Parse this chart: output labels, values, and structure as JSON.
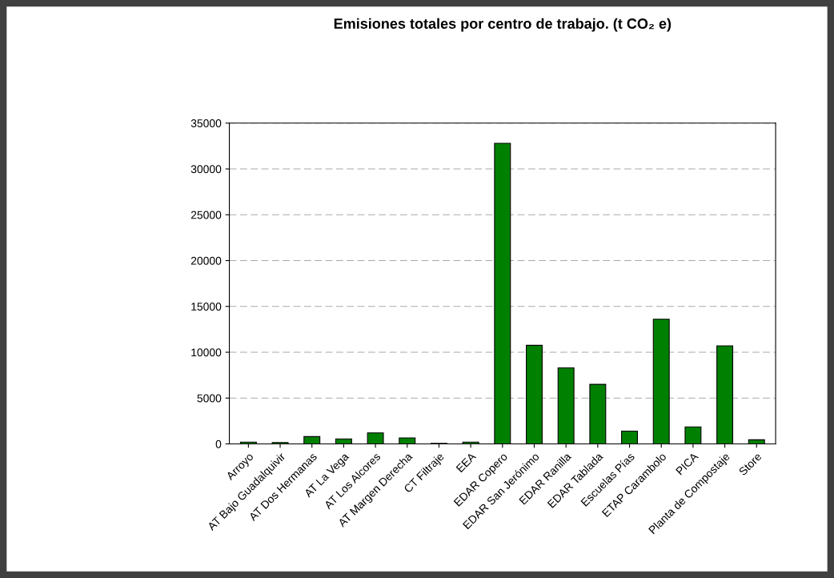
{
  "chart_data": {
    "type": "bar",
    "title": "Emisiones totales por centro de trabajo. (t CO₂ e)",
    "categories": [
      "Arroyo",
      "AT Bajo Guadalquivir",
      "AT Dos Hermanas",
      "AT La Vega",
      "AT Los Alcores",
      "AT Margen Derecha",
      "CT Filtraje",
      "EEA",
      "EDAR Copero",
      "EDAR San Jerónimo",
      "EDAR Ranilla",
      "EDAR Tablada",
      "Escuelas Pías",
      "ETAP Carambolo",
      "PICA",
      "Planta de Compostaje",
      "Store"
    ],
    "values": [
      200,
      150,
      800,
      550,
      1200,
      650,
      50,
      200,
      32800,
      10750,
      8300,
      6500,
      1400,
      13600,
      1850,
      10700,
      450
    ],
    "color": "#008000",
    "ylim": [
      0,
      35000
    ],
    "yticks": [
      0,
      5000,
      10000,
      15000,
      20000,
      25000,
      30000,
      35000
    ],
    "grid": "y"
  }
}
